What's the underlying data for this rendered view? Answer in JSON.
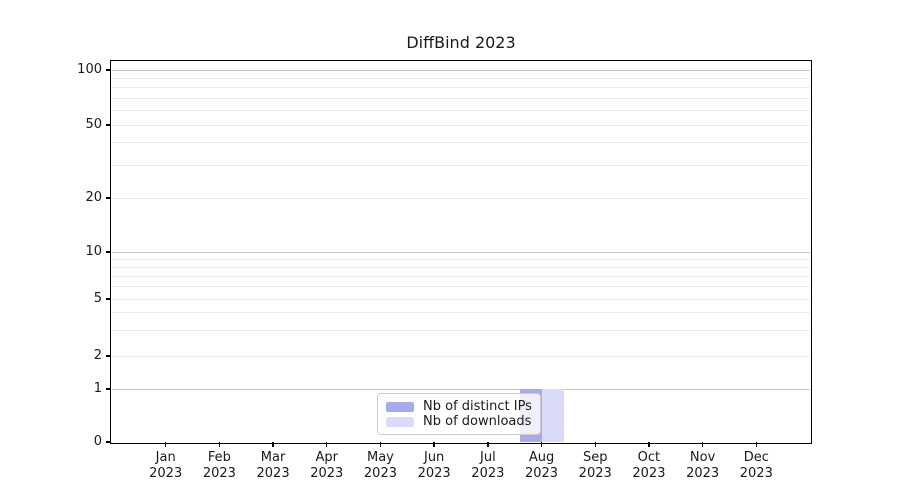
{
  "chart_data": {
    "type": "bar",
    "title": "DiffBind 2023",
    "year": "2023",
    "categories": [
      "Jan",
      "Feb",
      "Mar",
      "Apr",
      "May",
      "Jun",
      "Jul",
      "Aug",
      "Sep",
      "Oct",
      "Nov",
      "Dec"
    ],
    "series": [
      {
        "name": "Nb of distinct IPs",
        "color": "#a9abe9",
        "values": [
          0,
          0,
          0,
          0,
          0,
          0,
          0,
          1,
          0,
          0,
          0,
          0
        ]
      },
      {
        "name": "Nb of downloads",
        "color": "#d9dbf8",
        "values": [
          0,
          0,
          0,
          0,
          0,
          0,
          0,
          1,
          0,
          0,
          0,
          0
        ]
      }
    ],
    "y_ticks": [
      0,
      1,
      2,
      5,
      10,
      20,
      50,
      100
    ],
    "y_major_gridlines": [
      1,
      10,
      100
    ],
    "y_minor_gridlines": [
      3,
      4,
      6,
      7,
      8,
      9,
      30,
      40,
      60,
      70,
      80,
      90
    ],
    "y_scale": "symlog",
    "ylim": [
      0,
      115
    ],
    "xlabel": "",
    "ylabel": "",
    "grid": "horizontal",
    "legend": {
      "position": "bottom-center",
      "labels": [
        "Nb of distinct IPs",
        "Nb of downloads"
      ]
    },
    "colors": {
      "major_grid": "#c6c6c6",
      "minor_grid": "#ececec",
      "spine": "#000000"
    }
  }
}
